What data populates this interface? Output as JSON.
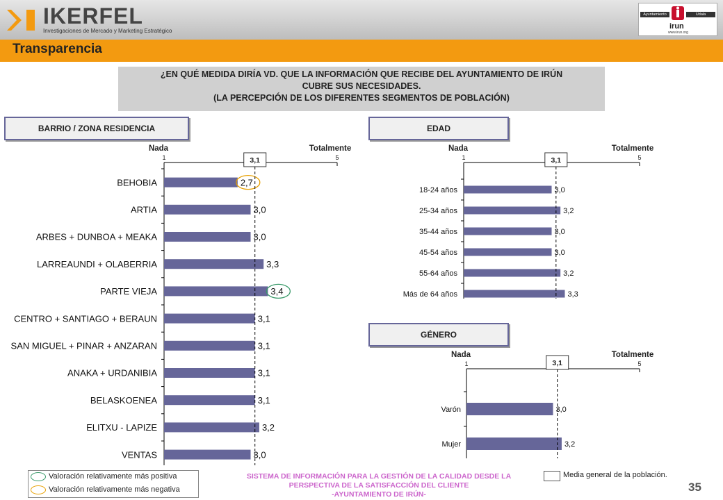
{
  "header": {
    "brand_name": "IKERFEL",
    "brand_tagline": "Investigaciones de Mercado y Marketing Estratégico",
    "ayuntamiento_logo_text": "Ayuntamiento",
    "udala_logo_text": "Udala",
    "irun_logo_text": "irun",
    "irun_url": "www.irun.org"
  },
  "title": "Transparencia",
  "question": {
    "line1": "¿EN QUÉ MEDIDA DIRÍA VD. QUE LA INFORMACIÓN QUE RECIBE DEL AYUNTAMIENTO DE IRÚN",
    "line2": "CUBRE SUS NECESIDADES.",
    "line3": "(LA PERCEPCIÓN DE LOS DIFERENTES SEGMENTOS DE POBLACIÓN)"
  },
  "segments": {
    "barrio": "BARRIO / ZONA RESIDENCIA",
    "edad": "EDAD",
    "genero": "GÉNERO"
  },
  "chart_data": [
    {
      "type": "bar",
      "orientation": "horizontal",
      "segment": "BARRIO / ZONA RESIDENCIA",
      "categories": [
        "BEHOBIA",
        "ARTIA",
        "ARBES + DUNBOA + MEAKA",
        "LARREAUNDI + OLABERRIA",
        "PARTE VIEJA",
        "CENTRO + SANTIAGO + BERAUN",
        "SAN MIGUEL + PINAR + ANZARAN",
        "ANAKA + URDANIBIA",
        "BELASKOENEA",
        "ELITXU - LAPIZE",
        "VENTAS"
      ],
      "values": [
        2.7,
        3.0,
        3.0,
        3.3,
        3.4,
        3.1,
        3.1,
        3.1,
        3.1,
        3.2,
        3.0
      ],
      "value_labels": [
        "2,7",
        "3,0",
        "3,0",
        "3,3",
        "3,4",
        "3,1",
        "3,1",
        "3,1",
        "3,1",
        "3,2",
        "3,0"
      ],
      "highlight_positive": [
        "PARTE VIEJA"
      ],
      "highlight_negative": [
        "BEHOBIA"
      ],
      "xlim": [
        1,
        5
      ],
      "tick_labels": [
        "1",
        "5"
      ],
      "scale_min_label": "Nada",
      "scale_max_label": "Totalmente",
      "mean": 3.1,
      "mean_label": "3,1"
    },
    {
      "type": "bar",
      "orientation": "horizontal",
      "segment": "EDAD",
      "categories": [
        "18-24 años",
        "25-34 años",
        "35-44 años",
        "45-54 años",
        "55-64 años",
        "Más de 64 años"
      ],
      "values": [
        3.0,
        3.2,
        3.0,
        3.0,
        3.2,
        3.3
      ],
      "value_labels": [
        "3,0",
        "3,2",
        "3,0",
        "3,0",
        "3,2",
        "3,3"
      ],
      "xlim": [
        1,
        5
      ],
      "tick_labels": [
        "1",
        "5"
      ],
      "scale_min_label": "Nada",
      "scale_max_label": "Totalmente",
      "mean": 3.1,
      "mean_label": "3,1"
    },
    {
      "type": "bar",
      "orientation": "horizontal",
      "segment": "GÉNERO",
      "categories": [
        "Varón",
        "Mujer"
      ],
      "values": [
        3.0,
        3.2
      ],
      "value_labels": [
        "3,0",
        "3,2"
      ],
      "xlim": [
        1,
        5
      ],
      "tick_labels": [
        "1",
        "5"
      ],
      "scale_min_label": "Nada",
      "scale_max_label": "Totalmente",
      "mean": 3.1,
      "mean_label": "3,1"
    }
  ],
  "legend": {
    "positive": "Valoración relativamente más positiva",
    "negative": "Valoración relativamente más negativa",
    "mean": "Media general de la población."
  },
  "footer": {
    "line1": "SISTEMA DE INFORMACIÓN PARA LA GESTIÓN DE LA CALIDAD DESDE LA",
    "line2": "PERSPECTIVA DE LA SATISFACCIÓN DEL CLIENTE",
    "line3": "-AYUNTAMIENTO DE IRÚN-"
  },
  "page_number": "35",
  "colors": {
    "bar": "#666699",
    "orange": "#f39a10",
    "positive_ellipse": "#3a9a6a",
    "negative_ellipse": "#e8a000",
    "footer_text": "#cc66cc",
    "ikerfel_mark": "#f39a10"
  }
}
